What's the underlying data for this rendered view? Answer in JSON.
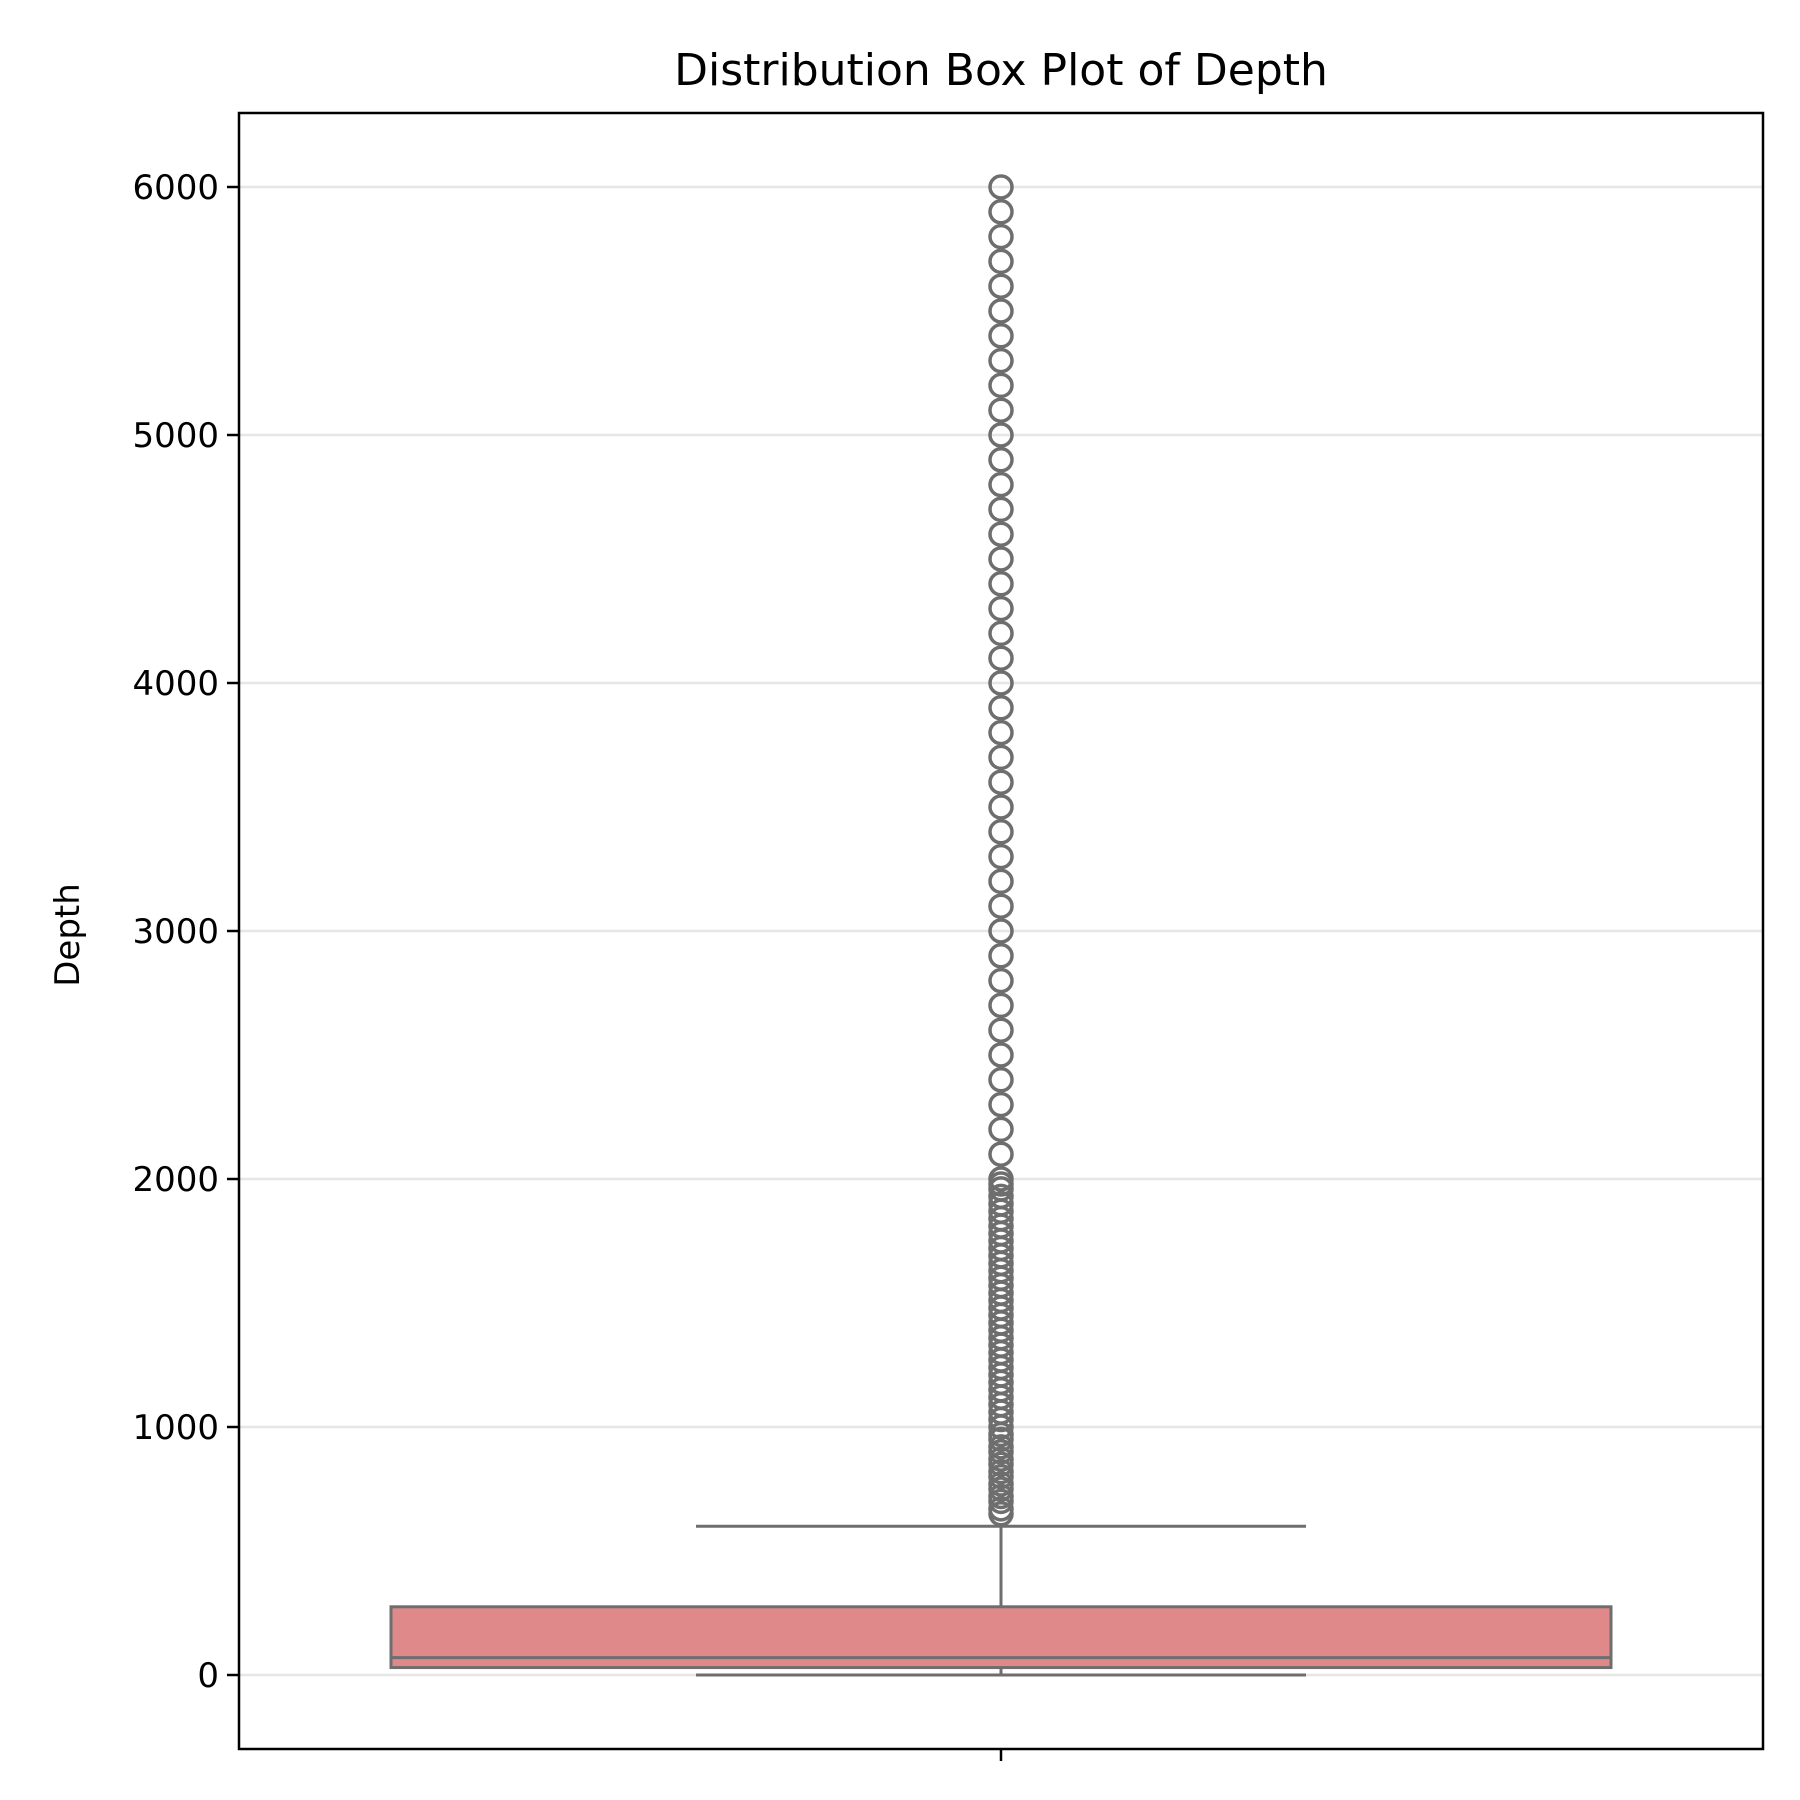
{
  "chart_data": {
    "type": "box",
    "title": "Distribution Box Plot of Depth",
    "xlabel": "",
    "ylabel": "Depth",
    "ylim": [
      -300,
      6300
    ],
    "yticks": [
      0,
      1000,
      2000,
      3000,
      4000,
      5000,
      6000
    ],
    "ytick_labels": [
      "0",
      "1000",
      "2000",
      "3000",
      "4000",
      "5000",
      "6000"
    ],
    "grid": "horizontal",
    "legend": "none",
    "box": {
      "whisker_low": 0,
      "q1": 30,
      "median": 70,
      "q3": 275,
      "whisker_high": 600
    },
    "outliers": [
      650,
      670,
      700,
      720,
      750,
      770,
      800,
      820,
      850,
      870,
      900,
      920,
      950,
      970,
      1000,
      1030,
      1060,
      1090,
      1120,
      1150,
      1180,
      1210,
      1240,
      1270,
      1300,
      1330,
      1360,
      1390,
      1420,
      1450,
      1480,
      1510,
      1540,
      1570,
      1600,
      1630,
      1660,
      1690,
      1720,
      1750,
      1780,
      1810,
      1840,
      1870,
      1900,
      1930,
      1960,
      1980,
      2000,
      2100,
      2200,
      2300,
      2400,
      2500,
      2600,
      2700,
      2800,
      2900,
      3000,
      3100,
      3200,
      3300,
      3400,
      3500,
      3600,
      3700,
      3800,
      3900,
      4000,
      4100,
      4200,
      4300,
      4400,
      4500,
      4600,
      4700,
      4800,
      4900,
      5000,
      5100,
      5200,
      5300,
      5400,
      5500,
      5600,
      5700,
      5800,
      5900,
      6000
    ],
    "colors": {
      "box_fill": "#e0898b",
      "line": "#6e6e6e",
      "grid": "#e6e6e6",
      "frame": "#000000"
    }
  }
}
